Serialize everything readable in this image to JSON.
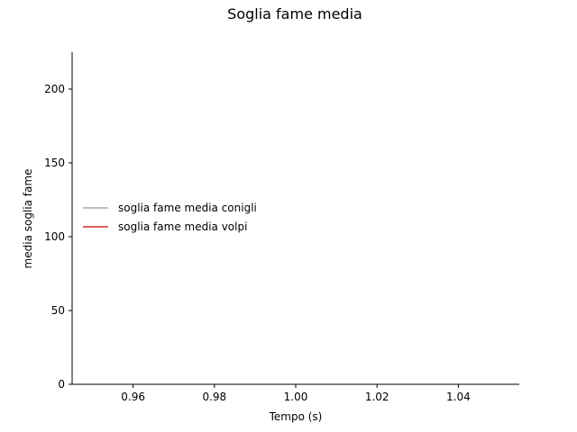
{
  "chart_data": {
    "type": "line",
    "title": "Soglia fame media",
    "xlabel": "Tempo (s)",
    "ylabel": "media soglia fame",
    "xlim": [
      0.945,
      1.055
    ],
    "ylim": [
      0,
      225
    ],
    "xticks": [
      0.96,
      0.98,
      1.0,
      1.02,
      1.04
    ],
    "xtick_labels": [
      "0.96",
      "0.98",
      "1.00",
      "1.02",
      "1.04"
    ],
    "yticks": [
      0,
      50,
      100,
      150,
      200
    ],
    "ytick_labels": [
      "0",
      "50",
      "100",
      "150",
      "200"
    ],
    "grid": false,
    "legend_position": "center-left",
    "series": [
      {
        "name": "soglia fame media conigli",
        "color": "#a9a9a9",
        "x": [],
        "y": []
      },
      {
        "name": "soglia fame media volpi",
        "color": "#d62728",
        "x": [],
        "y": []
      }
    ]
  }
}
